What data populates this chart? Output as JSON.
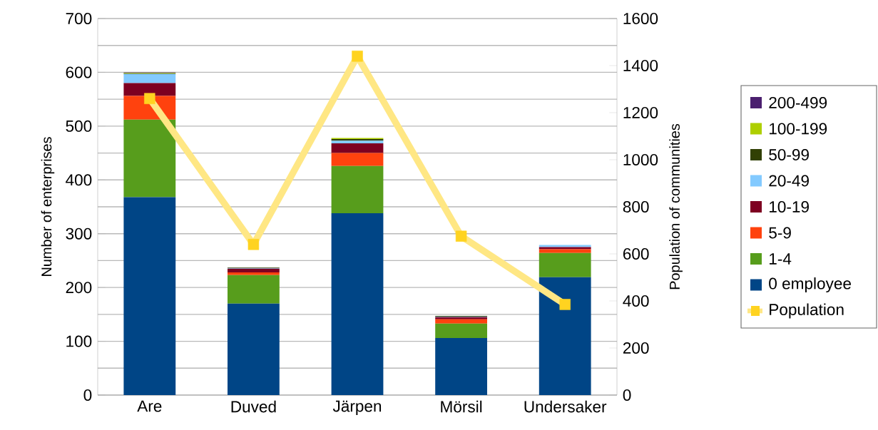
{
  "chart_data": {
    "type": "bar",
    "stacked": true,
    "ylabel": "Number of enterprises",
    "y2label": "Population of communities",
    "categories": [
      "Are",
      "Duved",
      "Järpen",
      "Mörsil",
      "Undersaker"
    ],
    "ylim": [
      0,
      700
    ],
    "yticks": [
      0,
      100,
      200,
      300,
      400,
      500,
      600,
      700
    ],
    "y2lim": [
      0,
      1600
    ],
    "y2ticks": [
      0,
      200,
      400,
      600,
      800,
      1000,
      1200,
      1400,
      1600
    ],
    "grid": "y",
    "legend": "right",
    "series": [
      {
        "name": "0 employee",
        "color": "#004586",
        "values": [
          368,
          170,
          338,
          106,
          219
        ]
      },
      {
        "name": "1-4",
        "color": "#579d1c",
        "values": [
          144,
          53,
          88,
          27,
          45
        ]
      },
      {
        "name": "5-9",
        "color": "#ff420e",
        "values": [
          44,
          5,
          24,
          8,
          7
        ]
      },
      {
        "name": "10-19",
        "color": "#7e0021",
        "values": [
          24,
          7,
          18,
          4,
          4
        ]
      },
      {
        "name": "20-49",
        "color": "#83caff",
        "values": [
          17,
          1,
          5,
          1,
          4
        ]
      },
      {
        "name": "50-99",
        "color": "#314004",
        "values": [
          1,
          1,
          3,
          1,
          0
        ]
      },
      {
        "name": "100-199",
        "color": "#aecf00",
        "values": [
          1,
          0,
          2,
          0,
          0
        ]
      },
      {
        "name": "200-499",
        "color": "#4b1f6f",
        "values": [
          1,
          0,
          0,
          0,
          0
        ]
      },
      {
        "name": "Population",
        "type": "line",
        "axis": "y2",
        "marker": "square",
        "color": "#ffd320",
        "values": [
          1260,
          640,
          1440,
          675,
          385
        ]
      }
    ]
  }
}
